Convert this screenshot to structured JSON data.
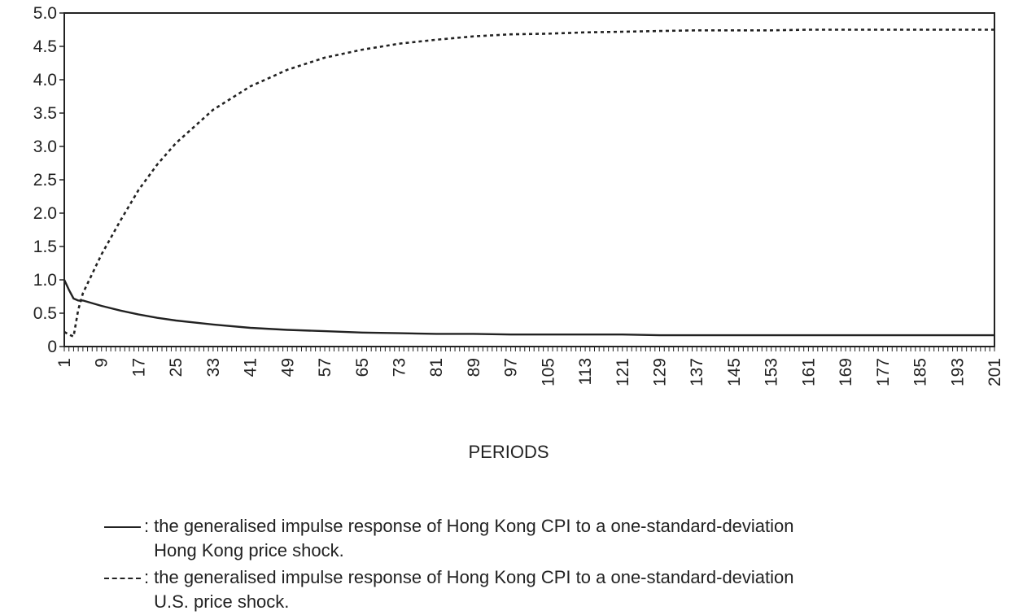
{
  "chart_data": {
    "type": "line",
    "xlabel": "PERIODS",
    "ylabel": "",
    "xlim": [
      1,
      201
    ],
    "ylim": [
      0,
      5.0
    ],
    "yticks": [
      "0",
      "0.5",
      "1.0",
      "1.5",
      "2.0",
      "2.5",
      "3.0",
      "3.5",
      "4.0",
      "4.5",
      "5.0"
    ],
    "xticks": [
      1,
      9,
      17,
      25,
      33,
      41,
      49,
      57,
      65,
      73,
      81,
      89,
      97,
      105,
      113,
      121,
      129,
      137,
      145,
      153,
      161,
      169,
      177,
      185,
      193,
      201
    ],
    "grid": false,
    "series": [
      {
        "style": "solid",
        "x": [
          1,
          2,
          3,
          4,
          5,
          9,
          13,
          17,
          21,
          25,
          33,
          41,
          49,
          57,
          65,
          73,
          81,
          89,
          97,
          105,
          113,
          121,
          129,
          137,
          145,
          153,
          161,
          169,
          177,
          185,
          193,
          201
        ],
        "y": [
          1.0,
          0.85,
          0.72,
          0.69,
          0.69,
          0.61,
          0.54,
          0.48,
          0.43,
          0.39,
          0.33,
          0.28,
          0.25,
          0.23,
          0.21,
          0.2,
          0.19,
          0.19,
          0.18,
          0.18,
          0.18,
          0.18,
          0.17,
          0.17,
          0.17,
          0.17,
          0.17,
          0.17,
          0.17,
          0.17,
          0.17,
          0.17
        ]
      },
      {
        "style": "dashed",
        "x": [
          1,
          2,
          3,
          4,
          5,
          9,
          13,
          17,
          21,
          25,
          33,
          41,
          49,
          57,
          65,
          73,
          81,
          89,
          97,
          105,
          113,
          121,
          129,
          137,
          145,
          153,
          161,
          169,
          177,
          185,
          193,
          201
        ],
        "y": [
          0.22,
          0.18,
          0.15,
          0.55,
          0.8,
          1.38,
          1.88,
          2.35,
          2.73,
          3.05,
          3.55,
          3.9,
          4.15,
          4.33,
          4.45,
          4.54,
          4.6,
          4.65,
          4.68,
          4.69,
          4.71,
          4.72,
          4.73,
          4.74,
          4.74,
          4.74,
          4.75,
          4.75,
          4.75,
          4.75,
          4.75,
          4.75
        ]
      }
    ]
  },
  "legend": {
    "solid": {
      "colon": ":",
      "line1": "the generalised impulse response of Hong Kong CPI to a one-standard-deviation",
      "line2": "Hong Kong price shock."
    },
    "dashed": {
      "colon": ":",
      "line1": "the generalised impulse response of Hong Kong CPI to a one-standard-deviation",
      "line2": "U.S. price shock."
    }
  }
}
